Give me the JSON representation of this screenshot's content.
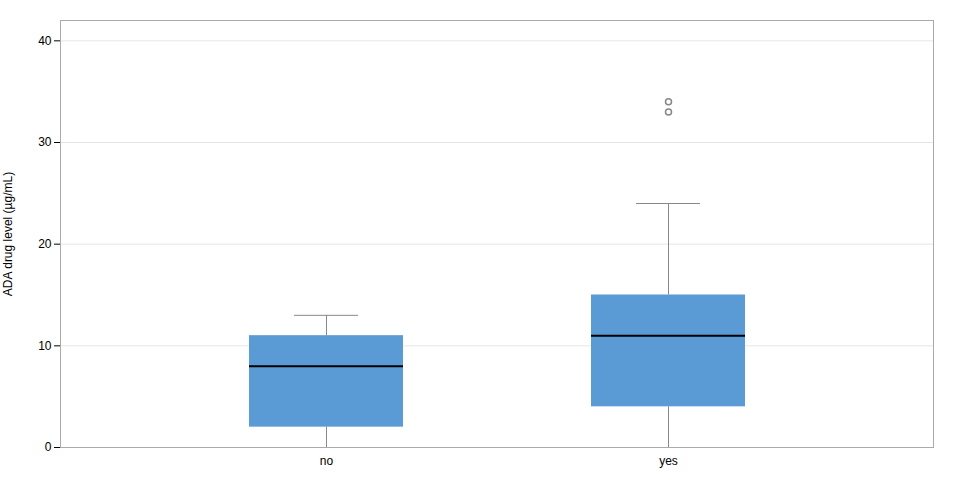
{
  "chart_data": {
    "type": "box",
    "ylabel": "ADA drug level (µg/mL)",
    "categories": [
      "no",
      "yes"
    ],
    "whislo": [
      0.0,
      0.0
    ],
    "q1": [
      2.0,
      4.0
    ],
    "med": [
      8.0,
      11.0
    ],
    "q3": [
      11.0,
      15.0
    ],
    "whishi": [
      13.0,
      24.0
    ],
    "fliers": [
      [],
      [
        33.0,
        34.0
      ]
    ],
    "color": "#5B9BD5",
    "ylim": [
      0,
      42
    ],
    "yticks": [
      0,
      10,
      20,
      30,
      40
    ],
    "grid": true
  }
}
